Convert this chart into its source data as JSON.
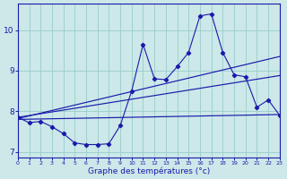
{
  "xlabel": "Graphe des températures (°c)",
  "background_color": "#cce8e8",
  "grid_color": "#99cccc",
  "line_color": "#1a1aaa",
  "xlim": [
    0,
    23
  ],
  "ylim": [
    6.85,
    10.65
  ],
  "xticks": [
    0,
    1,
    2,
    3,
    4,
    5,
    6,
    7,
    8,
    9,
    10,
    11,
    12,
    13,
    14,
    15,
    16,
    17,
    18,
    19,
    20,
    21,
    22,
    23
  ],
  "yticks": [
    7,
    8,
    9,
    10
  ],
  "series1_x": [
    0,
    1,
    2,
    3,
    4,
    5,
    6,
    7,
    8,
    9,
    10,
    11,
    12,
    13,
    14,
    15,
    16,
    17,
    18,
    19,
    20,
    21,
    22,
    23
  ],
  "series1_y": [
    7.85,
    7.72,
    7.75,
    7.62,
    7.45,
    7.22,
    7.18,
    7.18,
    7.2,
    7.65,
    8.5,
    9.65,
    8.8,
    8.78,
    9.1,
    9.45,
    10.35,
    10.4,
    9.45,
    8.9,
    8.85,
    8.1,
    8.28,
    7.9
  ],
  "series2_x": [
    0,
    23
  ],
  "series2_y": [
    7.82,
    9.35
  ],
  "series3_x": [
    0,
    23
  ],
  "series3_y": [
    7.85,
    8.88
  ],
  "series4_x": [
    0,
    23
  ],
  "series4_y": [
    7.8,
    7.92
  ]
}
